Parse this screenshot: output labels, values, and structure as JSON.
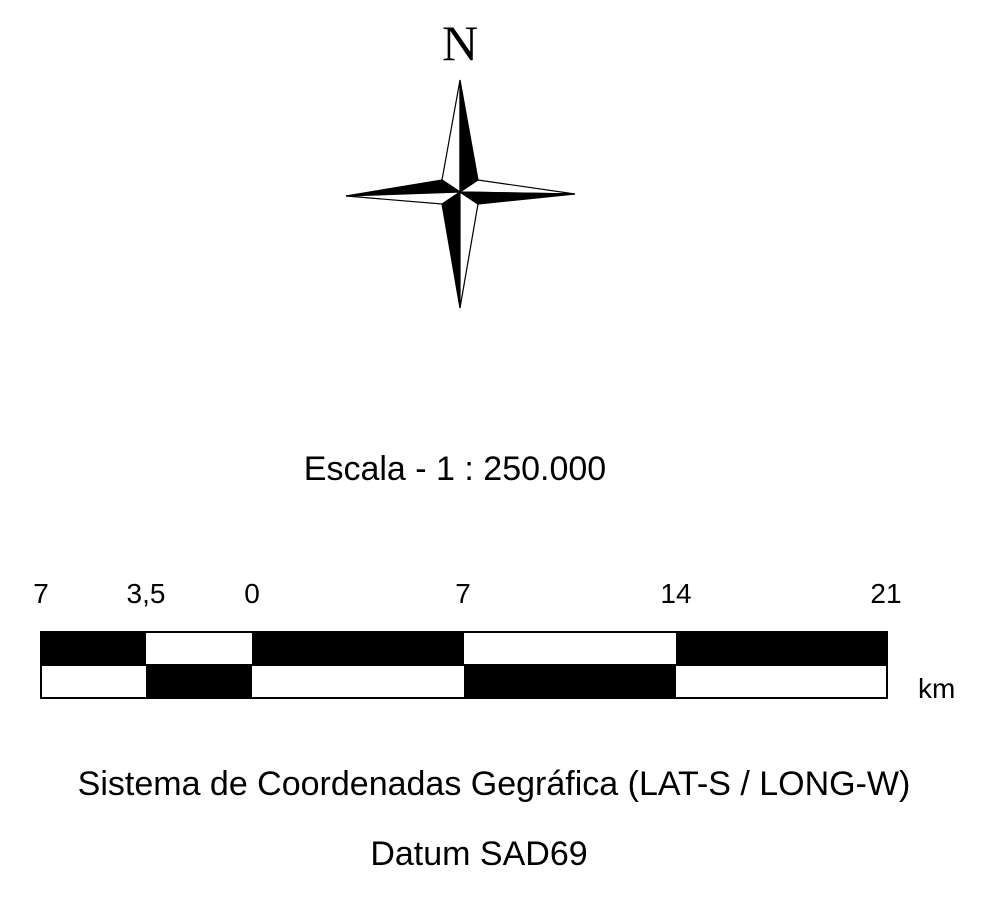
{
  "north_arrow": {
    "letter": "N",
    "icon": "compass-rose-icon"
  },
  "scale": {
    "title": "Escala - 1 : 250.000",
    "ticks": [
      "7",
      "3,5",
      "0",
      "7",
      "14",
      "21"
    ],
    "unit": "km",
    "colors": {
      "dark": "#000000",
      "light": "#ffffff"
    }
  },
  "footer": {
    "system": "Sistema de Coordenadas Gegráfica (LAT-S / LONG-W)",
    "datum": "Datum SAD69"
  }
}
